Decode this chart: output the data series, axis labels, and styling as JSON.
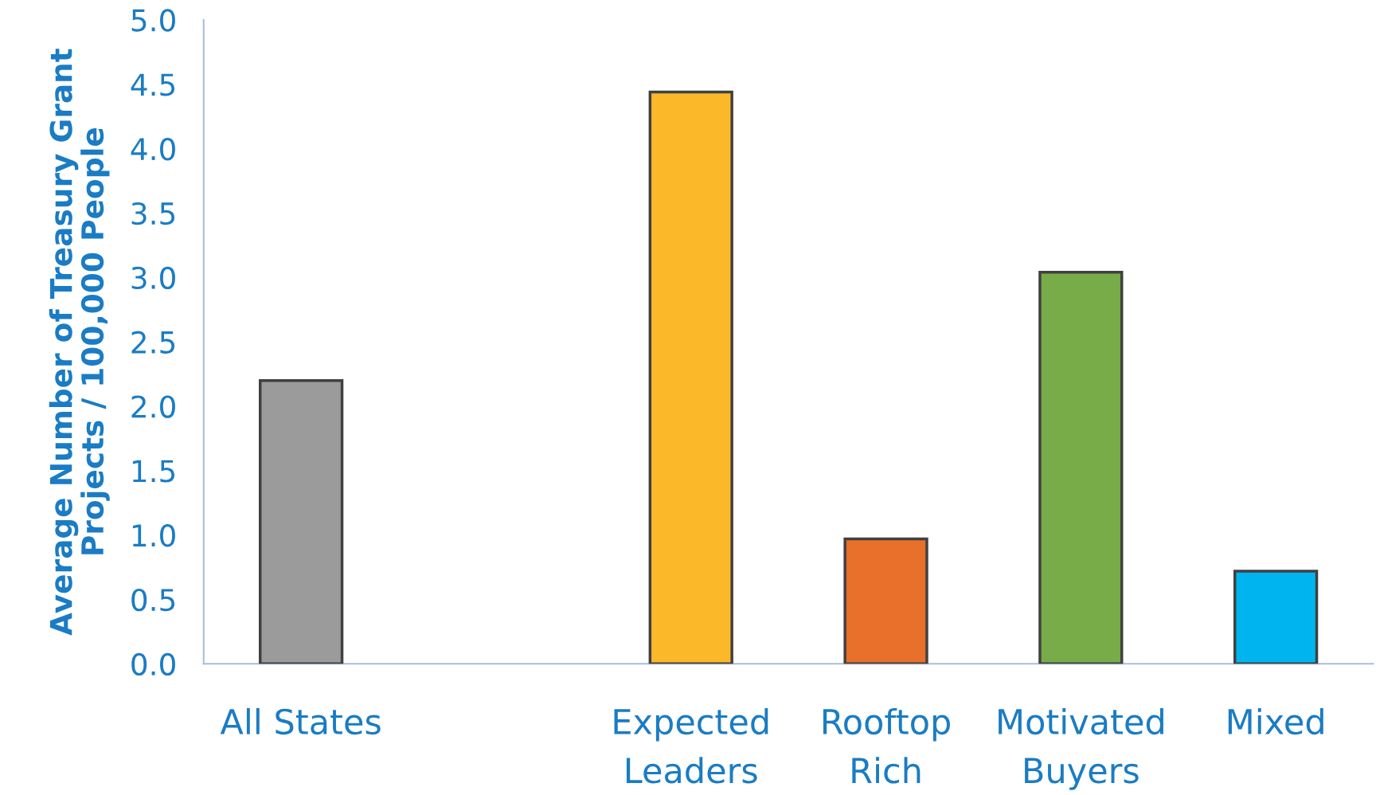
{
  "chart_data": {
    "type": "bar",
    "ylabel": "Average Number of Treasury Grant\nProjects / 100,000 People",
    "categories": [
      "All States",
      null,
      "Expected\nLeaders",
      "Rooftop\nRich",
      "Motivated\nBuyers",
      "Mixed"
    ],
    "values": [
      2.2,
      null,
      4.44,
      0.97,
      3.04,
      0.72
    ],
    "colors": [
      "#9b9b9b",
      "#ffffff",
      "#fbb829",
      "#e8702a",
      "#77ac48",
      "#00b5ef"
    ],
    "ylim": [
      0,
      5
    ],
    "yticks": [
      {
        "value": 0,
        "label": "0.0"
      },
      {
        "value": 0.5,
        "label": "0.5"
      },
      {
        "value": 1,
        "label": "1.0"
      },
      {
        "value": 1.5,
        "label": "1.5"
      },
      {
        "value": 2,
        "label": "2.0"
      },
      {
        "value": 2.5,
        "label": "2.5"
      },
      {
        "value": 3,
        "label": "3.0"
      },
      {
        "value": 3.5,
        "label": "3.5"
      },
      {
        "value": 4,
        "label": "4.0"
      },
      {
        "value": 4.5,
        "label": "4.5"
      },
      {
        "value": 5,
        "label": "5.0"
      }
    ],
    "grid": false,
    "legend": false
  }
}
